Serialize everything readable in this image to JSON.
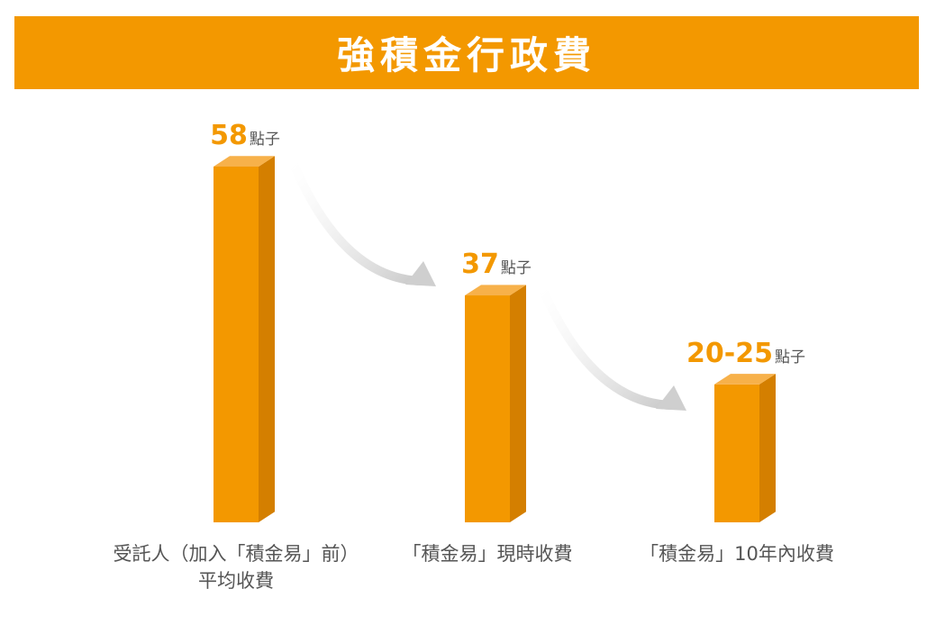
{
  "header": {
    "title": "強積金行政費"
  },
  "colors": {
    "banner": "#f39800",
    "bar_front": "#f39800",
    "bar_side": "#d47f00",
    "bar_top": "#f7b14a",
    "value_text": "#f39800",
    "label_text": "#555555",
    "arrow": "#cfcfcf"
  },
  "chart_data": {
    "type": "bar",
    "title": "強積金行政費",
    "categories": [
      "受託人（加入「積金易」前）\n平均收費",
      "「積金易」現時收費",
      "「積金易」10年內收費"
    ],
    "values": [
      58,
      37,
      22.5
    ],
    "value_labels": [
      "58",
      "37",
      "20-25"
    ],
    "unit": "點子",
    "ylim": [
      0,
      65
    ],
    "grid": false,
    "legend": "none"
  }
}
